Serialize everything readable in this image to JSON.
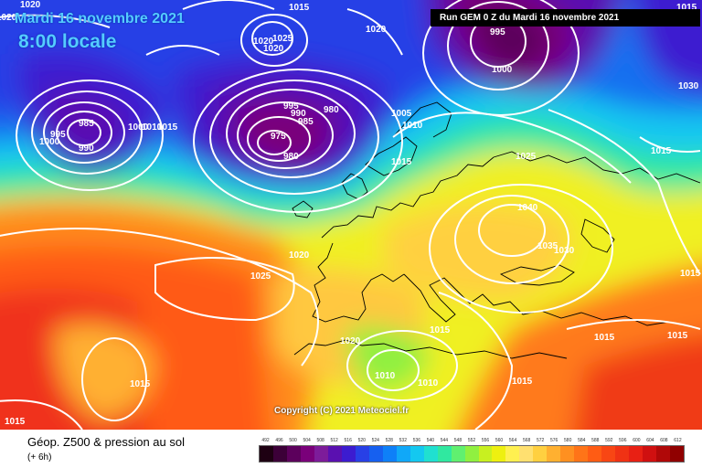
{
  "map": {
    "date": "Mardi 16 novembre 2021",
    "local_time": "8:00 locale",
    "run_info": "Run GEM 0 Z du Mardi 16 novembre 2021",
    "copyright": "Copyright (C) 2021 Meteociel.fr",
    "pressure_labels": [
      "1020",
      "1020",
      "1015",
      "1025",
      "1020",
      "1020",
      "1020",
      "995",
      "1000",
      "1015",
      "1030",
      "985",
      "990",
      "995",
      "1000",
      "1000",
      "1015",
      "1010",
      "995",
      "990",
      "985",
      "980",
      "975",
      "980",
      "1005",
      "1010",
      "1015",
      "1025",
      "1015",
      "1040",
      "1035",
      "1030",
      "1020",
      "1025",
      "1015",
      "1015",
      "1020",
      "1015",
      "1015",
      "1010",
      "1010",
      "1015",
      "1015",
      "1015"
    ]
  },
  "legend": {
    "title": "Géop. Z500 & pression au sol",
    "subtitle": "(+ 6h)",
    "scale_values": [
      "492",
      "496",
      "500",
      "504",
      "508",
      "512",
      "516",
      "520",
      "524",
      "528",
      "532",
      "536",
      "540",
      "544",
      "548",
      "552",
      "556",
      "560",
      "564",
      "568",
      "572",
      "576",
      "580",
      "584",
      "588",
      "592",
      "596",
      "600",
      "604",
      "608",
      "612"
    ],
    "scale_colors": [
      "#1e0012",
      "#3c0038",
      "#5c005c",
      "#7a007a",
      "#7d1c9a",
      "#5a10b0",
      "#3c1cd0",
      "#2840e6",
      "#1660f0",
      "#0e80f8",
      "#10a8f8",
      "#14c8f0",
      "#20e0d0",
      "#30e8a0",
      "#60f070",
      "#90f040",
      "#c8f020",
      "#eef010",
      "#fff050",
      "#ffe070",
      "#ffd040",
      "#ffb030",
      "#ff9020",
      "#ff7418",
      "#ff5c14",
      "#f84614",
      "#f03214",
      "#e82014",
      "#d01010",
      "#b00808",
      "#900000"
    ]
  }
}
